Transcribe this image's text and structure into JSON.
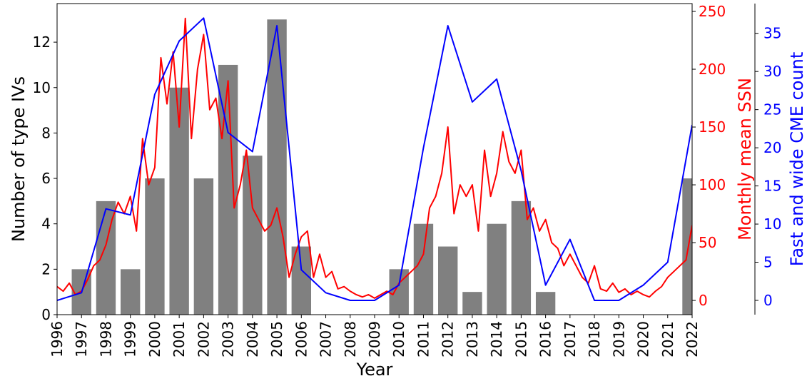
{
  "chart_data": {
    "type": "bar",
    "x_label": "Year",
    "y_label": "Number of type IVs",
    "y2_label": "Monthly mean SSN",
    "y3_label": "Fast and wide CME count",
    "xlim": [
      1996,
      2022
    ],
    "xticks": [
      1996,
      1997,
      1998,
      1999,
      2000,
      2001,
      2002,
      2003,
      2004,
      2005,
      2006,
      2007,
      2008,
      2009,
      2010,
      2011,
      2012,
      2013,
      2014,
      2015,
      2016,
      2017,
      2018,
      2019,
      2020,
      2021,
      2022
    ],
    "ylim": [
      0,
      13.7
    ],
    "yticks": [
      0,
      2,
      4,
      6,
      8,
      10,
      12
    ],
    "y2lim": [
      -12.3,
      256.8
    ],
    "y2ticks": [
      0,
      50,
      100,
      150,
      200,
      250
    ],
    "y3lim": [
      -1.87,
      38.9
    ],
    "y3ticks": [
      0,
      5,
      10,
      15,
      20,
      25,
      30,
      35
    ],
    "series": [
      {
        "type": "bar",
        "color": "#808080",
        "x": [
          1997,
          1998,
          1999,
          2000,
          2001,
          2002,
          2003,
          2004,
          2005,
          2006,
          2007,
          2008,
          2009,
          2010,
          2011,
          2012,
          2013,
          2014,
          2015,
          2016,
          2017,
          2018,
          2019,
          2020,
          2021,
          2022
        ],
        "values": [
          2,
          5,
          2,
          6,
          10,
          6,
          11,
          7,
          13,
          3,
          0,
          0,
          0,
          2,
          4,
          3,
          1,
          4,
          5,
          1,
          0,
          0,
          0,
          0,
          0,
          6
        ]
      },
      {
        "type": "line",
        "color": "#ff0000",
        "axis": "y2",
        "x": [
          1996,
          1996.25,
          1996.5,
          1996.75,
          1997,
          1997.25,
          1997.5,
          1997.75,
          1998,
          1998.25,
          1998.5,
          1998.75,
          1999,
          1999.25,
          1999.5,
          1999.75,
          2000,
          2000.25,
          2000.5,
          2000.75,
          2001,
          2001.25,
          2001.5,
          2001.75,
          2002,
          2002.25,
          2002.5,
          2002.75,
          2003,
          2003.25,
          2003.5,
          2003.75,
          2004,
          2004.25,
          2004.5,
          2004.75,
          2005,
          2005.25,
          2005.5,
          2005.75,
          2006,
          2006.25,
          2006.5,
          2006.75,
          2007,
          2007.25,
          2007.5,
          2007.75,
          2008,
          2008.25,
          2008.5,
          2008.75,
          2009,
          2009.25,
          2009.5,
          2009.75,
          2010,
          2010.25,
          2010.5,
          2010.75,
          2011,
          2011.25,
          2011.5,
          2011.75,
          2012,
          2012.25,
          2012.5,
          2012.75,
          2013,
          2013.25,
          2013.5,
          2013.75,
          2014,
          2014.25,
          2014.5,
          2014.75,
          2015,
          2015.25,
          2015.5,
          2015.75,
          2016,
          2016.25,
          2016.5,
          2016.75,
          2017,
          2017.25,
          2017.5,
          2017.75,
          2018,
          2018.25,
          2018.5,
          2018.75,
          2019,
          2019.25,
          2019.5,
          2019.75,
          2020,
          2020.25,
          2020.5,
          2020.75,
          2021,
          2021.25,
          2021.5,
          2021.75,
          2022
        ],
        "values": [
          12,
          8,
          15,
          5,
          8,
          18,
          30,
          35,
          48,
          70,
          85,
          75,
          90,
          60,
          140,
          100,
          115,
          210,
          170,
          215,
          150,
          244,
          140,
          200,
          230,
          165,
          175,
          140,
          190,
          80,
          100,
          130,
          80,
          70,
          60,
          65,
          80,
          55,
          20,
          40,
          55,
          60,
          20,
          40,
          20,
          25,
          10,
          12,
          8,
          5,
          3,
          5,
          2,
          5,
          8,
          5,
          15,
          20,
          25,
          30,
          40,
          80,
          90,
          110,
          150,
          75,
          100,
          90,
          100,
          60,
          130,
          90,
          110,
          146,
          120,
          110,
          130,
          70,
          80,
          60,
          70,
          50,
          45,
          30,
          40,
          30,
          20,
          15,
          30,
          10,
          8,
          15,
          7,
          10,
          5,
          8,
          5,
          3,
          8,
          12,
          20,
          25,
          30,
          35,
          65
        ]
      },
      {
        "type": "line",
        "color": "#0000ff",
        "axis": "y3",
        "x": [
          1996,
          1997,
          1998,
          1999,
          2000,
          2001,
          2002,
          2003,
          2004,
          2005,
          2006,
          2007,
          2008,
          2009,
          2010,
          2011,
          2012,
          2013,
          2014,
          2015,
          2016,
          2017,
          2018,
          2019,
          2020,
          2021,
          2022
        ],
        "values": [
          0,
          1,
          12,
          11.2,
          27,
          34,
          37,
          22,
          19.5,
          36,
          4,
          1,
          0,
          0,
          2,
          20,
          36,
          26,
          29,
          17,
          2,
          8,
          0,
          0,
          2,
          5,
          23
        ]
      }
    ]
  }
}
